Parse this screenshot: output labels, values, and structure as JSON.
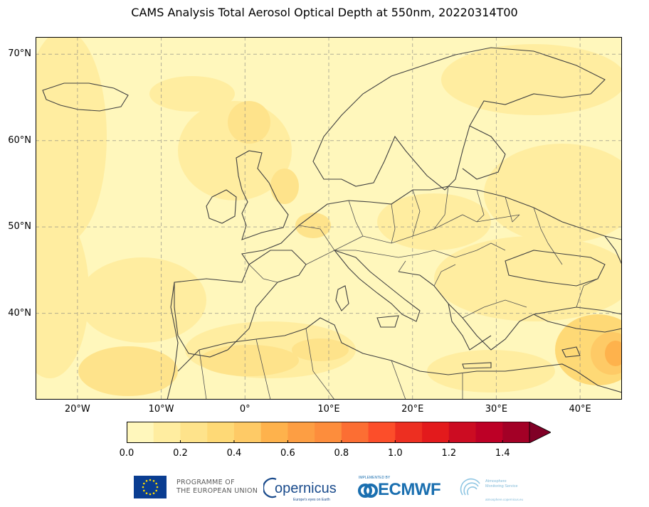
{
  "title": "CAMS Analysis Total Aerosol Optical Depth at 550nm, 20220314T00",
  "map": {
    "projection": "PlateCarree",
    "lon_range": [
      -25,
      45
    ],
    "lat_range": [
      30,
      72
    ],
    "lon_ticks": [
      -20,
      -10,
      0,
      10,
      20,
      30,
      40
    ],
    "lat_ticks": [
      40,
      50,
      60,
      70
    ],
    "lon_tick_labels": [
      "20°W",
      "10°W",
      "0°",
      "10°E",
      "20°E",
      "30°E",
      "40°E"
    ],
    "lat_tick_labels": [
      "40°N",
      "50°N",
      "60°N",
      "70°N"
    ],
    "gridlines": true,
    "background_level_color": "#fff7bc"
  },
  "colorbar": {
    "levels": [
      0.0,
      0.1,
      0.2,
      0.3,
      0.4,
      0.5,
      0.6,
      0.7,
      0.8,
      0.9,
      1.0,
      1.1,
      1.2,
      1.3,
      1.4,
      1.5
    ],
    "colors": [
      "#fff7bc",
      "#ffeda0",
      "#fee38b",
      "#fed976",
      "#feca66",
      "#feb24c",
      "#fd9e43",
      "#fd8d3c",
      "#fc6e33",
      "#fc4e2a",
      "#ed2f21",
      "#e31a1c",
      "#cc0c22",
      "#bd0026",
      "#a30026"
    ],
    "extend_color": "#800026",
    "tick_values": [
      0.0,
      0.2,
      0.4,
      0.6,
      0.8,
      1.0,
      1.2,
      1.4
    ],
    "tick_labels": [
      "0.0",
      "0.2",
      "0.4",
      "0.6",
      "0.8",
      "1.0",
      "1.2",
      "1.4"
    ],
    "extend": "max"
  },
  "logos": {
    "eu_text_line1": "PROGRAMME OF",
    "eu_text_line2": "THE EUROPEAN UNION",
    "copernicus": "opernicus",
    "copernicus_sub": "Europe's eyes on Earth",
    "ecmwf_impl": "IMPLEMENTED BY",
    "ecmwf": "ECMWF",
    "atmosphere_line1": "Atmosphere",
    "atmosphere_line2": "Monitoring Service",
    "atmosphere_sub": "atmosphere.copernicus.eu"
  }
}
